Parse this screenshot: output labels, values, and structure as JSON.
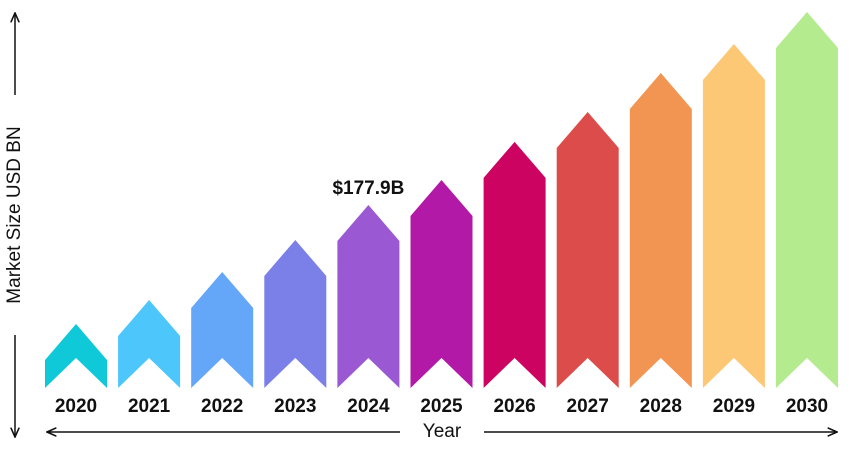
{
  "chart_data": {
    "type": "arrow-bar",
    "categories": [
      "2020",
      "2021",
      "2022",
      "2023",
      "2024",
      "2025",
      "2026",
      "2027",
      "2028",
      "2029",
      "2030"
    ],
    "values": [
      62.2,
      85.5,
      112.8,
      143.9,
      177.9,
      202.2,
      239.2,
      268.3,
      306.2,
      334.4,
      365.5
    ],
    "value_labels": [
      null,
      null,
      null,
      null,
      "$177.9B",
      null,
      null,
      null,
      null,
      null,
      null
    ],
    "colors": [
      "#10c9d8",
      "#4cc6fb",
      "#64a6f8",
      "#7b80e8",
      "#9a58d2",
      "#b219a6",
      "#cc0360",
      "#dc4c4a",
      "#f29452",
      "#fdc876",
      "#b5eb8f"
    ],
    "x_label": "Year",
    "y_label": "Market Size USD BN"
  }
}
